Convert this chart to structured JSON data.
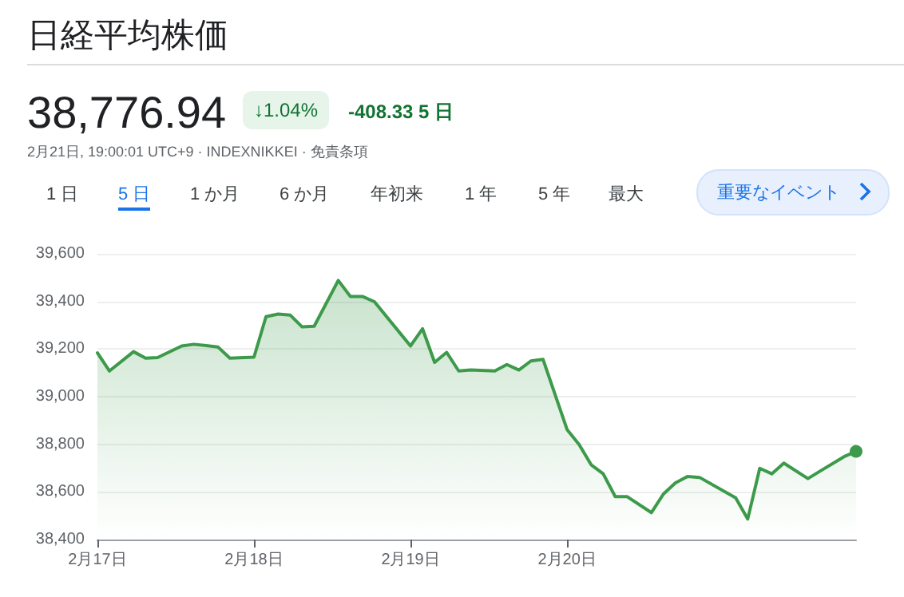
{
  "chart_data": {
    "type": "area",
    "title": "日経平均株価",
    "annotations": [
      "38,776.94",
      "↓1.04%",
      "-408.33 5 日",
      "2月21日, 19:00:01 UTC+9 · INDEXNIKKEI · 免責条項",
      "1 日",
      "5 日",
      "1 か月",
      "6 か月",
      "年初来",
      "1 年",
      "5 年",
      "最大",
      "重要なイベント"
    ],
    "categories": [
      "2月17日",
      null,
      null,
      null,
      null,
      null,
      null,
      null,
      null,
      null,
      null,
      null,
      null,
      "2月18日",
      null,
      null,
      null,
      null,
      null,
      null,
      null,
      null,
      null,
      null,
      null,
      null,
      "2月19日",
      null,
      null,
      null,
      null,
      null,
      null,
      null,
      null,
      null,
      null,
      null,
      null,
      "2月20日",
      null,
      null,
      null,
      null,
      null,
      null,
      null,
      null,
      null,
      null,
      null,
      null,
      null,
      null,
      null,
      null,
      null,
      null,
      null,
      null,
      null,
      null,
      null,
      null
    ],
    "series": [
      {
        "color": "#3c9a4a",
        "values": [
          39184,
          39108,
          null,
          39189,
          39162,
          39164,
          null,
          39213,
          39220,
          null,
          39209,
          39162,
          null,
          39166,
          39336,
          39347,
          39343,
          39293,
          39296,
          null,
          39488,
          39421,
          39421,
          39399,
          null,
          null,
          39213,
          39285,
          39144,
          39186,
          39108,
          39112,
          null,
          39108,
          39135,
          39112,
          39150,
          39157,
          null,
          38862,
          38799,
          38714,
          38676,
          38580,
          38580,
          null,
          38513,
          38591,
          38638,
          38665,
          38661,
          null,
          null,
          38575,
          38486,
          38699,
          38676,
          38721,
          null,
          38656,
          38687,
          null,
          38748,
          38770
        ]
      }
    ],
    "ylim": [
      38400,
      39600
    ],
    "yticks": [
      {
        "value": 38400,
        "label": "38,400"
      },
      {
        "value": 38600,
        "label": "38,600"
      },
      {
        "value": 38800,
        "label": "38,800"
      },
      {
        "value": 39000,
        "label": "39,000"
      },
      {
        "value": 39200,
        "label": "39,200"
      },
      {
        "value": 39400,
        "label": "39,400"
      },
      {
        "value": 39600,
        "label": "39,600"
      }
    ],
    "grid": "y"
  }
}
